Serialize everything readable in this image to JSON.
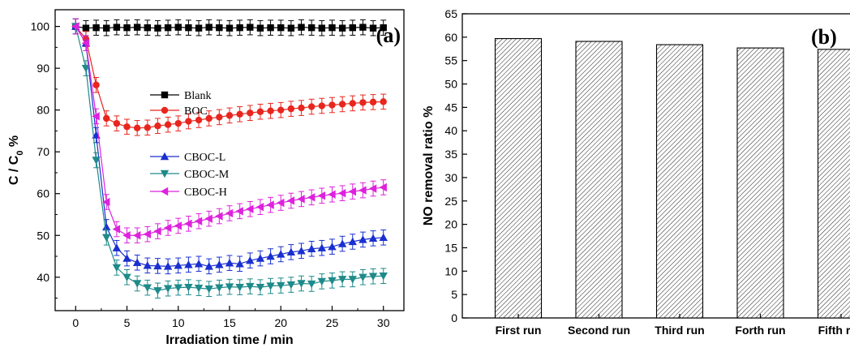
{
  "chart_data": [
    {
      "panel_label": "(a)",
      "type": "line",
      "title": "",
      "xlabel": "Irradiation time / min",
      "ylabel_main": "C / C",
      "ylabel_sub": "0",
      "ylabel_unit": " %",
      "xlim": [
        -2,
        32
      ],
      "ylim": [
        32,
        104
      ],
      "xticks": [
        0,
        5,
        10,
        15,
        20,
        25,
        30
      ],
      "yticks": [
        40,
        50,
        60,
        70,
        80,
        90,
        100
      ],
      "grid": false,
      "legend_placement": "center",
      "series": [
        {
          "name": "Blank",
          "marker": "square",
          "color": "#000000",
          "x": [
            0,
            1,
            2,
            3,
            4,
            5,
            6,
            7,
            8,
            9,
            10,
            11,
            12,
            13,
            14,
            15,
            16,
            17,
            18,
            19,
            20,
            21,
            22,
            23,
            24,
            25,
            26,
            27,
            28,
            29,
            30
          ],
          "y": [
            100,
            99.6,
            99.7,
            99.6,
            99.8,
            99.7,
            99.8,
            99.7,
            99.6,
            99.7,
            99.8,
            99.7,
            99.6,
            99.8,
            99.7,
            99.6,
            99.7,
            99.8,
            99.6,
            99.7,
            99.7,
            99.6,
            99.8,
            99.7,
            99.6,
            99.7,
            99.6,
            99.7,
            99.8,
            99.6,
            99.7
          ]
        },
        {
          "name": "BOC",
          "marker": "circle",
          "color": "#e8261e",
          "x": [
            0,
            1,
            2,
            3,
            4,
            5,
            6,
            7,
            8,
            9,
            10,
            11,
            12,
            13,
            14,
            15,
            16,
            17,
            18,
            19,
            20,
            21,
            22,
            23,
            24,
            25,
            26,
            27,
            28,
            29,
            30
          ],
          "y": [
            100,
            97,
            86,
            78,
            76.8,
            76,
            75.7,
            75.8,
            76.2,
            76.5,
            76.8,
            77.3,
            77.6,
            78,
            78.3,
            78.7,
            79,
            79.3,
            79.6,
            79.8,
            80,
            80.3,
            80.5,
            80.8,
            81,
            81.2,
            81.4,
            81.6,
            81.8,
            81.9,
            82
          ]
        },
        {
          "name": "CBOC-L",
          "marker": "triangle-up",
          "color": "#1a2fd0",
          "x": [
            0,
            1,
            2,
            3,
            4,
            5,
            6,
            7,
            8,
            9,
            10,
            11,
            12,
            13,
            14,
            15,
            16,
            17,
            18,
            19,
            20,
            21,
            22,
            23,
            24,
            25,
            26,
            27,
            28,
            29,
            30
          ],
          "y": [
            100,
            96,
            74,
            52,
            47,
            44.5,
            43.5,
            42.8,
            42.7,
            42.6,
            42.8,
            43,
            43.2,
            42.6,
            43,
            43.4,
            43.2,
            44,
            44.5,
            45,
            45.5,
            46,
            46.3,
            46.8,
            47,
            47.3,
            48,
            48.5,
            49,
            49.3,
            49.5
          ]
        },
        {
          "name": "CBOC-M",
          "marker": "triangle-down",
          "color": "#1e8a8a",
          "x": [
            0,
            1,
            2,
            3,
            4,
            5,
            6,
            7,
            8,
            9,
            10,
            11,
            12,
            13,
            14,
            15,
            16,
            17,
            18,
            19,
            20,
            21,
            22,
            23,
            24,
            25,
            26,
            27,
            28,
            29,
            30
          ],
          "y": [
            100,
            90,
            68,
            49.5,
            42.3,
            40,
            38.5,
            37.5,
            36.8,
            37.3,
            37.5,
            37.6,
            37.4,
            37.2,
            37.5,
            37.7,
            37.6,
            37.8,
            37.6,
            37.9,
            38,
            38.2,
            38.5,
            38.4,
            39,
            39.2,
            39.5,
            39.5,
            40,
            40.2,
            40.3
          ]
        },
        {
          "name": "CBOC-H",
          "marker": "triangle-left",
          "color": "#dd22dd",
          "x": [
            0,
            1,
            2,
            3,
            4,
            5,
            6,
            7,
            8,
            9,
            10,
            11,
            12,
            13,
            14,
            15,
            16,
            17,
            18,
            19,
            20,
            21,
            22,
            23,
            24,
            25,
            26,
            27,
            28,
            29,
            30
          ],
          "y": [
            100,
            96,
            78.5,
            58,
            51.5,
            50,
            50,
            50.3,
            51,
            51.8,
            52.3,
            52.8,
            53.4,
            54,
            54.6,
            55.3,
            55.8,
            56.3,
            56.8,
            57.3,
            57.8,
            58.3,
            58.7,
            59.1,
            59.5,
            59.8,
            60.1,
            60.5,
            60.8,
            61.2,
            61.5
          ]
        }
      ]
    },
    {
      "panel_label": "(b)",
      "type": "bar",
      "title": "",
      "xlabel": "",
      "ylabel": "NO removal ratio %",
      "categories": [
        "First run",
        "Second run",
        "Third run",
        "Forth run",
        "Fifth run"
      ],
      "values": [
        59.7,
        59.1,
        58.4,
        57.7,
        57.4
      ],
      "ylim": [
        0,
        65
      ],
      "yticks": [
        0,
        5,
        10,
        15,
        20,
        25,
        30,
        35,
        40,
        45,
        50,
        55,
        60,
        65
      ],
      "fill": "hatched",
      "grid": false
    }
  ]
}
